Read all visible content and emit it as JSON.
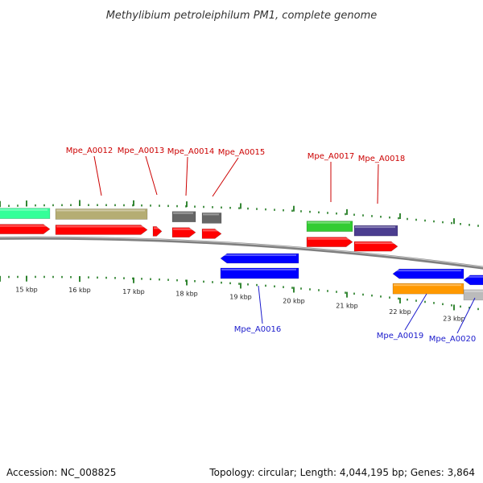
{
  "title": "Methylibium petroleiphilum PM1, complete genome",
  "footer": {
    "accession": "Accession: NC_008825",
    "info": "Topology: circular; Length: 4,044,195 bp; Genes: 3,864"
  },
  "ticks": [
    "15 kbp",
    "16 kbp",
    "17 kbp",
    "18 kbp",
    "19 kbp",
    "20 kbp",
    "21 kbp",
    "22 kbp",
    "23 kbp"
  ],
  "colors": {
    "backbone": "#7f7f7f",
    "tick": "#1f7a1f",
    "forward": "#ff0000",
    "reverse": "#0000ff",
    "forward_label": "#cc0000",
    "reverse_label": "#1a1acc"
  },
  "genes": [
    {
      "id": "g11",
      "label": "",
      "strand": "forward",
      "color": "#ff0000",
      "ortholog_color": "#33ff99"
    },
    {
      "id": "g12",
      "label": "Mpe_A0012",
      "strand": "forward",
      "color": "#ff0000",
      "ortholog_color": "#b5ad73"
    },
    {
      "id": "g13",
      "label": "Mpe_A0013",
      "strand": "forward",
      "color": "#ff0000",
      "ortholog_color": ""
    },
    {
      "id": "g14",
      "label": "Mpe_A0014",
      "strand": "forward",
      "color": "#ff0000",
      "ortholog_color": "#666666"
    },
    {
      "id": "g15",
      "label": "Mpe_A0015",
      "strand": "forward",
      "color": "#ff0000",
      "ortholog_color": "#666666"
    },
    {
      "id": "g16",
      "label": "Mpe_A0016",
      "strand": "reverse",
      "color": "#0000ff",
      "ortholog_color": "#0000ff"
    },
    {
      "id": "g17",
      "label": "Mpe_A0017",
      "strand": "forward",
      "color": "#ff0000",
      "ortholog_color": "#33cc33"
    },
    {
      "id": "g18",
      "label": "Mpe_A0018",
      "strand": "forward",
      "color": "#ff0000",
      "ortholog_color": "#4b3d8f"
    },
    {
      "id": "g19",
      "label": "Mpe_A0019",
      "strand": "reverse",
      "color": "#0000ff",
      "ortholog_color": "#ff9900"
    },
    {
      "id": "g20",
      "label": "Mpe_A0020",
      "strand": "reverse",
      "color": "#0000ff",
      "ortholog_color": "#bbbbbb"
    }
  ]
}
